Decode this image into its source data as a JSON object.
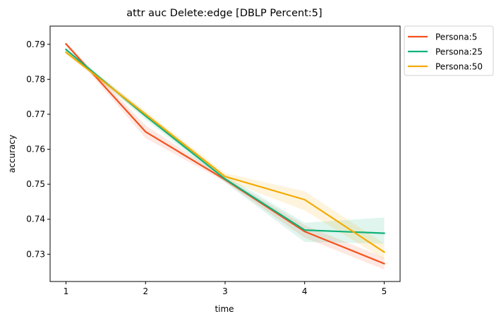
{
  "chart_data": {
    "type": "line",
    "title": "attr auc Delete:edge [DBLP Percent:5]",
    "xlabel": "time",
    "ylabel": "accuracy",
    "x": [
      1,
      2,
      3,
      4,
      5
    ],
    "xlim": [
      0.8,
      5.2
    ],
    "ylim": [
      0.7222,
      0.7952
    ],
    "x_ticks": [
      "1",
      "2",
      "3",
      "4",
      "5"
    ],
    "y_ticks": [
      "0.73",
      "0.74",
      "0.75",
      "0.76",
      "0.77",
      "0.78",
      "0.79"
    ],
    "grid": false,
    "legend_position": "outside-top-right",
    "series": [
      {
        "name": "Persona:5",
        "color": "#f4511e",
        "values": [
          0.7901,
          0.765,
          0.7513,
          0.7365,
          0.7273
        ],
        "lower": [
          0.7897,
          0.7632,
          0.7507,
          0.7347,
          0.7256
        ],
        "upper": [
          0.7905,
          0.7668,
          0.7519,
          0.7383,
          0.729
        ]
      },
      {
        "name": "Persona:25",
        "color": "#0fb27a",
        "values": [
          0.7885,
          0.7695,
          0.7515,
          0.7369,
          0.736
        ],
        "lower": [
          0.788,
          0.7685,
          0.7505,
          0.7335,
          0.733
        ],
        "upper": [
          0.789,
          0.7705,
          0.7525,
          0.739,
          0.7405
        ]
      },
      {
        "name": "Persona:50",
        "color": "#f5aa00",
        "values": [
          0.7877,
          0.77,
          0.7522,
          0.7456,
          0.7306
        ],
        "lower": [
          0.7872,
          0.769,
          0.7512,
          0.7425,
          0.7285
        ],
        "upper": [
          0.7882,
          0.771,
          0.7532,
          0.748,
          0.733
        ]
      }
    ]
  }
}
